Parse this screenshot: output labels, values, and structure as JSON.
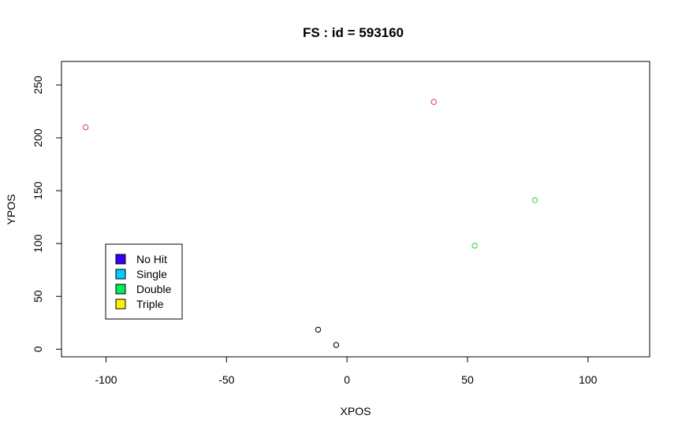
{
  "chart_data": {
    "type": "scatter",
    "title": "FS  : id = 593160",
    "xlabel": "XPOS",
    "ylabel": "YPOS",
    "xlim": [
      -118.5,
      125.6
    ],
    "ylim": [
      -7.2,
      272.3
    ],
    "xticks": [
      -100,
      -50,
      0,
      50,
      100
    ],
    "yticks": [
      0,
      50,
      100,
      150,
      200,
      250
    ],
    "points": [
      {
        "x": -108.5,
        "y": 210,
        "color": "#d63a6b"
      },
      {
        "x": 36,
        "y": 234,
        "color": "#d63a6b"
      },
      {
        "x": 78,
        "y": 141,
        "color": "#33cc33"
      },
      {
        "x": 53,
        "y": 98,
        "color": "#33cc33"
      },
      {
        "x": -12,
        "y": 18.5,
        "color": "#000000"
      },
      {
        "x": -4.5,
        "y": 4,
        "color": "#000000"
      }
    ],
    "legend": {
      "position": "bottom-left",
      "entries": [
        {
          "label": "No Hit",
          "color": "#3300ff"
        },
        {
          "label": "Single",
          "color": "#00ccff"
        },
        {
          "label": "Double",
          "color": "#00ee55"
        },
        {
          "label": "Triple",
          "color": "#ffee00"
        }
      ]
    }
  }
}
